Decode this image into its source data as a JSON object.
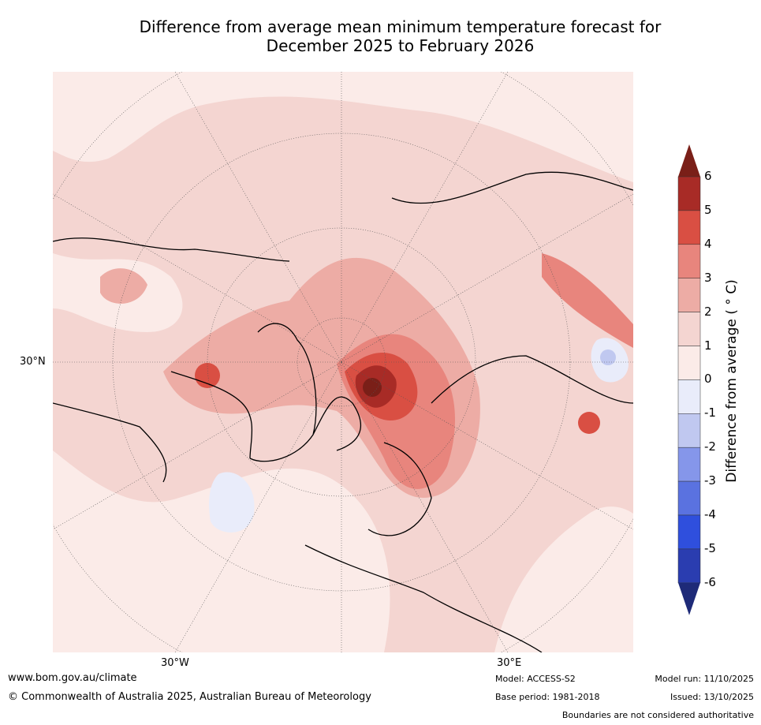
{
  "title_line1": "Difference from average mean minimum temperature forecast for",
  "title_line2": "December 2025 to February 2026",
  "map": {
    "lat_label": "30°N",
    "lon_labels": [
      "30°W",
      "30°E"
    ]
  },
  "colorbar": {
    "title": "Difference from average ( ° C)",
    "ticks": [
      "6",
      "5",
      "4",
      "3",
      "2",
      "1",
      "0",
      "-1",
      "-2",
      "-3",
      "-4",
      "-5",
      "-6"
    ],
    "colors": [
      "#a82b26",
      "#d94f43",
      "#e8857d",
      "#edaca5",
      "#f4d5d1",
      "#fbebe8",
      "#e9ecfa",
      "#c0c8f0",
      "#8596ea",
      "#5a72e0",
      "#2f4fdd",
      "#2a3db0"
    ],
    "over_color": "#7a1f18",
    "under_color": "#1e2a78"
  },
  "footer": {
    "website": "www.bom.gov.au/climate",
    "copyright": "© Commonwealth of Australia 2025, Australian Bureau of Meteorology",
    "model": "Model: ACCESS-S2",
    "base_period": "Base period: 1981-2018",
    "model_run": "Model run: 11/10/2025",
    "issued": "Issued: 13/10/2025",
    "disclaimer": "Boundaries are not considered authoritative"
  }
}
